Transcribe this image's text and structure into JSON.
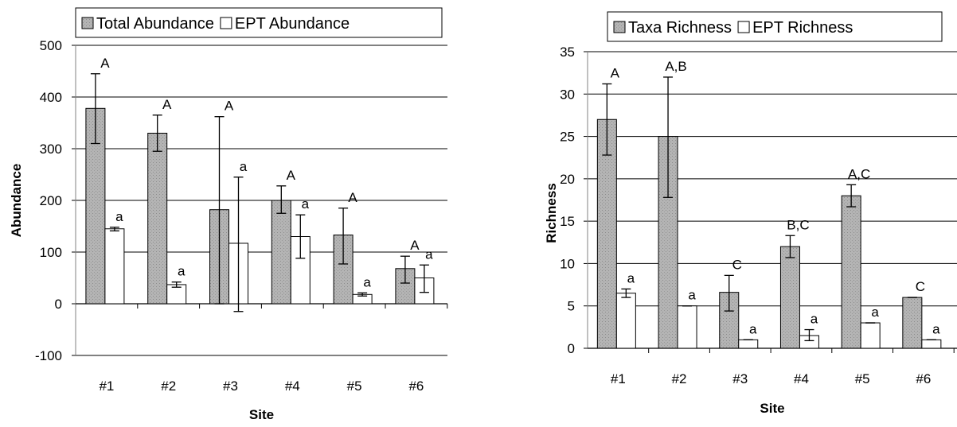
{
  "chart_data": [
    {
      "type": "bar",
      "categories": [
        "#1",
        "#2",
        "#3",
        "#4",
        "#5",
        "#6"
      ],
      "series": [
        {
          "name": "Total Abundance",
          "color": "#b4b4b4",
          "values": [
            378,
            330,
            182,
            200,
            133,
            68
          ],
          "error_low": [
            310,
            295,
            0,
            175,
            77,
            40
          ],
          "error_high": [
            445,
            365,
            362,
            228,
            185,
            92
          ],
          "labels": [
            "A",
            "A",
            "A",
            "A",
            "A",
            "A"
          ]
        },
        {
          "name": "EPT Abundance",
          "color": "#ffffff",
          "values": [
            145,
            37,
            117,
            130,
            18,
            50
          ],
          "error_low": [
            141,
            32,
            -15,
            88,
            15,
            22
          ],
          "error_high": [
            148,
            42,
            245,
            172,
            21,
            75
          ],
          "labels": [
            "a",
            "a",
            "a",
            "a",
            "a",
            "a"
          ]
        }
      ],
      "xlabel": "Site",
      "ylabel": "Abundance",
      "ylim": [
        -100,
        500
      ],
      "yticks": [
        "-100",
        "0",
        "100",
        "200",
        "300",
        "400",
        "500"
      ],
      "grid": true,
      "legend": "top"
    },
    {
      "type": "bar",
      "categories": [
        "#1",
        "#2",
        "#3",
        "#4",
        "#5",
        "#6"
      ],
      "series": [
        {
          "name": "Taxa Richness",
          "color": "#b4b4b4",
          "values": [
            27,
            25,
            6.6,
            12,
            18,
            6
          ],
          "error_low": [
            22.8,
            17.8,
            4.4,
            10.7,
            16.7,
            6
          ],
          "error_high": [
            31.2,
            32,
            8.6,
            13.3,
            19.3,
            6
          ],
          "labels": [
            "A",
            "A,B",
            "C",
            "B,C",
            "A,C",
            "C"
          ]
        },
        {
          "name": "EPT Richness",
          "color": "#ffffff",
          "values": [
            6.5,
            5,
            1,
            1.5,
            3,
            1
          ],
          "error_low": [
            6,
            5,
            1,
            0.9,
            3,
            1
          ],
          "error_high": [
            7,
            5,
            1,
            2.2,
            3,
            1
          ],
          "labels": [
            "a",
            "a",
            "a",
            "a",
            "a",
            "a"
          ]
        }
      ],
      "xlabel": "Site",
      "ylabel": "Richness",
      "ylim": [
        0,
        35
      ],
      "yticks": [
        "0",
        "5",
        "10",
        "15",
        "20",
        "25",
        "30",
        "35"
      ],
      "grid": true,
      "legend": "top"
    }
  ]
}
